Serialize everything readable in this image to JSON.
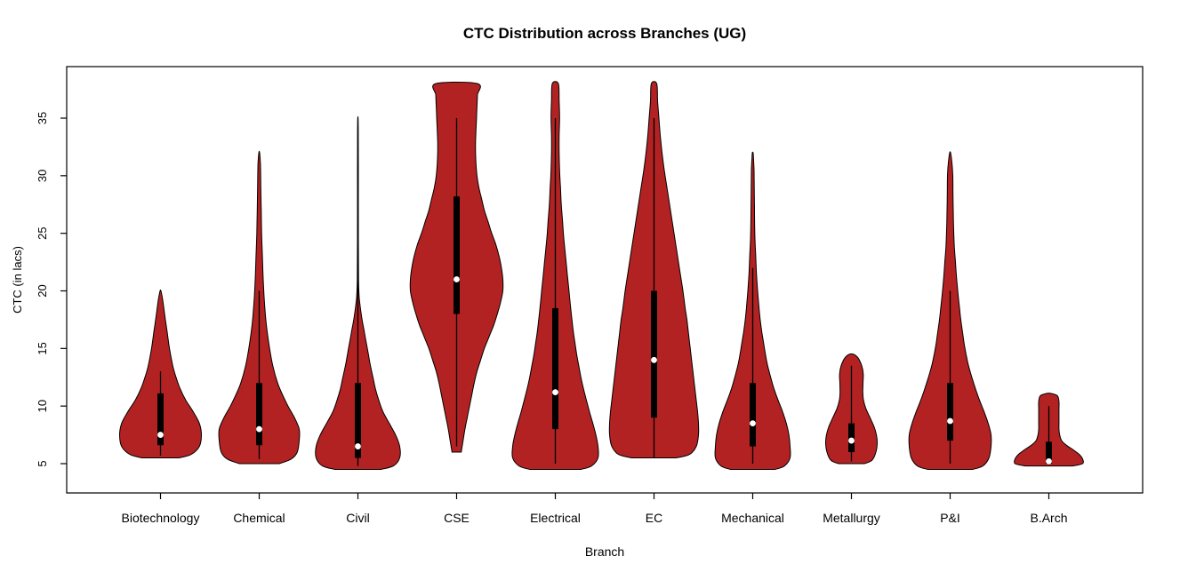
{
  "chart_data": {
    "type": "violin",
    "title": "CTC Distribution across Branches (UG)",
    "xlabel": "Branch",
    "ylabel": "CTC (in lacs)",
    "ylim": [
      2.5,
      39.5
    ],
    "yticks": [
      5,
      10,
      15,
      20,
      25,
      30,
      35
    ],
    "grid": false,
    "legend": "none",
    "fill_color": "#b22222",
    "outline_color": "#000000",
    "box_color": "#000000",
    "median_dot_color": "#ffffff",
    "categories": [
      "Biotechnology",
      "Chemical",
      "Civil",
      "CSE",
      "Electrical",
      "EC",
      "Mechanical",
      "Metallurgy",
      "P&I",
      "B.Arch"
    ],
    "violins": [
      {
        "name": "Biotechnology",
        "min": 5.5,
        "max": 20,
        "q1": 6.6,
        "q3": 11.1,
        "median": 7.5,
        "whisker": [
          5.7,
          13
        ],
        "max_halfwidth": 46,
        "profile": [
          [
            5.5,
            0.45
          ],
          [
            5.8,
            0.75
          ],
          [
            6.5,
            0.95
          ],
          [
            7.5,
            1.0
          ],
          [
            8.5,
            0.95
          ],
          [
            9.5,
            0.8
          ],
          [
            10.5,
            0.62
          ],
          [
            11.5,
            0.48
          ],
          [
            12.5,
            0.38
          ],
          [
            13.5,
            0.3
          ],
          [
            15,
            0.22
          ],
          [
            16.5,
            0.16
          ],
          [
            18,
            0.1
          ],
          [
            19.3,
            0.05
          ],
          [
            20,
            0.01
          ]
        ]
      },
      {
        "name": "Chemical",
        "min": 5,
        "max": 32,
        "q1": 6.6,
        "q3": 12,
        "median": 8,
        "whisker": [
          5.4,
          20
        ],
        "max_halfwidth": 45,
        "profile": [
          [
            5,
            0.5
          ],
          [
            5.4,
            0.8
          ],
          [
            6,
            0.95
          ],
          [
            7,
            1.0
          ],
          [
            8,
            1.0
          ],
          [
            9,
            0.88
          ],
          [
            10,
            0.72
          ],
          [
            11,
            0.58
          ],
          [
            12,
            0.46
          ],
          [
            13.5,
            0.34
          ],
          [
            15,
            0.26
          ],
          [
            17,
            0.18
          ],
          [
            19,
            0.13
          ],
          [
            21,
            0.1
          ],
          [
            23,
            0.08
          ],
          [
            25,
            0.06
          ],
          [
            27,
            0.05
          ],
          [
            29,
            0.04
          ],
          [
            31,
            0.03
          ],
          [
            32,
            0.01
          ]
        ]
      },
      {
        "name": "Civil",
        "min": 4.5,
        "max": 35,
        "q1": 5.5,
        "q3": 12,
        "median": 6.5,
        "whisker": [
          4.8,
          29
        ],
        "max_halfwidth": 47,
        "profile": [
          [
            4.5,
            0.55
          ],
          [
            4.8,
            0.85
          ],
          [
            5.5,
            1.0
          ],
          [
            6.5,
            1.0
          ],
          [
            7.5,
            0.9
          ],
          [
            8.5,
            0.75
          ],
          [
            9.5,
            0.6
          ],
          [
            10.5,
            0.5
          ],
          [
            11.5,
            0.42
          ],
          [
            12.5,
            0.36
          ],
          [
            13.5,
            0.3
          ],
          [
            14.5,
            0.25
          ],
          [
            15.5,
            0.2
          ],
          [
            16.5,
            0.15
          ],
          [
            17.5,
            0.1
          ],
          [
            18.5,
            0.06
          ],
          [
            19.5,
            0.03
          ],
          [
            21,
            0.015
          ],
          [
            25,
            0.01
          ],
          [
            30,
            0.01
          ],
          [
            34,
            0.008
          ],
          [
            35,
            0.004
          ]
        ]
      },
      {
        "name": "CSE",
        "min": 6,
        "max": 38,
        "q1": 18,
        "q3": 28.2,
        "median": 21,
        "whisker": [
          6.5,
          35
        ],
        "max_halfwidth": 52,
        "profile": [
          [
            6,
            0.1
          ],
          [
            7,
            0.14
          ],
          [
            8,
            0.18
          ],
          [
            9,
            0.23
          ],
          [
            10,
            0.28
          ],
          [
            11,
            0.33
          ],
          [
            12,
            0.38
          ],
          [
            13,
            0.44
          ],
          [
            14,
            0.52
          ],
          [
            15,
            0.6
          ],
          [
            16,
            0.7
          ],
          [
            17,
            0.8
          ],
          [
            18,
            0.88
          ],
          [
            19,
            0.95
          ],
          [
            20,
            1.0
          ],
          [
            21,
            1.0
          ],
          [
            22,
            0.97
          ],
          [
            23,
            0.92
          ],
          [
            24,
            0.85
          ],
          [
            25,
            0.76
          ],
          [
            26,
            0.68
          ],
          [
            27,
            0.6
          ],
          [
            28,
            0.54
          ],
          [
            29,
            0.48
          ],
          [
            30,
            0.44
          ],
          [
            31,
            0.42
          ],
          [
            32,
            0.41
          ],
          [
            33,
            0.41
          ],
          [
            34,
            0.42
          ],
          [
            35,
            0.43
          ],
          [
            36,
            0.44
          ],
          [
            37,
            0.45
          ],
          [
            38,
            0.45
          ]
        ]
      },
      {
        "name": "Electrical",
        "min": 4.5,
        "max": 38,
        "q1": 8,
        "q3": 18.5,
        "median": 11.2,
        "whisker": [
          5,
          35
        ],
        "max_halfwidth": 48,
        "profile": [
          [
            4.5,
            0.6
          ],
          [
            4.8,
            0.85
          ],
          [
            5.5,
            1.0
          ],
          [
            6.5,
            1.0
          ],
          [
            7.5,
            0.95
          ],
          [
            8.5,
            0.88
          ],
          [
            9.5,
            0.8
          ],
          [
            10.5,
            0.73
          ],
          [
            11.5,
            0.66
          ],
          [
            12.5,
            0.6
          ],
          [
            13.5,
            0.55
          ],
          [
            14.5,
            0.5
          ],
          [
            15.5,
            0.46
          ],
          [
            16.5,
            0.42
          ],
          [
            17.5,
            0.39
          ],
          [
            18.5,
            0.36
          ],
          [
            20,
            0.32
          ],
          [
            21.5,
            0.28
          ],
          [
            23,
            0.24
          ],
          [
            24.5,
            0.2
          ],
          [
            26,
            0.17
          ],
          [
            27.5,
            0.14
          ],
          [
            29,
            0.12
          ],
          [
            30.5,
            0.1
          ],
          [
            32,
            0.09
          ],
          [
            33.5,
            0.09
          ],
          [
            35,
            0.1
          ],
          [
            36.5,
            0.09
          ],
          [
            38,
            0.07
          ]
        ]
      },
      {
        "name": "EC",
        "min": 5.5,
        "max": 38,
        "q1": 9,
        "q3": 20,
        "median": 14,
        "whisker": [
          5.5,
          35
        ],
        "max_halfwidth": 50,
        "profile": [
          [
            5.5,
            0.5
          ],
          [
            5.8,
            0.8
          ],
          [
            6.5,
            0.95
          ],
          [
            7.5,
            1.0
          ],
          [
            8.5,
            1.0
          ],
          [
            9.5,
            0.98
          ],
          [
            10.5,
            0.95
          ],
          [
            11.5,
            0.92
          ],
          [
            12.5,
            0.89
          ],
          [
            13.5,
            0.86
          ],
          [
            14.5,
            0.83
          ],
          [
            15.5,
            0.8
          ],
          [
            16.5,
            0.77
          ],
          [
            17.5,
            0.74
          ],
          [
            18.5,
            0.7
          ],
          [
            20,
            0.65
          ],
          [
            21.5,
            0.59
          ],
          [
            23,
            0.53
          ],
          [
            24.5,
            0.47
          ],
          [
            26,
            0.41
          ],
          [
            27.5,
            0.35
          ],
          [
            29,
            0.29
          ],
          [
            30.5,
            0.23
          ],
          [
            32,
            0.18
          ],
          [
            33.5,
            0.14
          ],
          [
            35,
            0.11
          ],
          [
            36.5,
            0.08
          ],
          [
            38,
            0.06
          ]
        ]
      },
      {
        "name": "Mechanical",
        "min": 4.5,
        "max": 32,
        "q1": 6.5,
        "q3": 12,
        "median": 8.5,
        "whisker": [
          5,
          22
        ],
        "max_halfwidth": 42,
        "profile": [
          [
            4.5,
            0.6
          ],
          [
            4.8,
            0.85
          ],
          [
            5.5,
            1.0
          ],
          [
            6.5,
            1.0
          ],
          [
            7.5,
            0.97
          ],
          [
            8.5,
            0.9
          ],
          [
            9.5,
            0.8
          ],
          [
            10.5,
            0.68
          ],
          [
            11.5,
            0.57
          ],
          [
            12.5,
            0.48
          ],
          [
            13.5,
            0.4
          ],
          [
            14.5,
            0.34
          ],
          [
            15.5,
            0.29
          ],
          [
            16.5,
            0.24
          ],
          [
            17.5,
            0.2
          ],
          [
            18.5,
            0.17
          ],
          [
            20,
            0.13
          ],
          [
            21.5,
            0.1
          ],
          [
            23,
            0.08
          ],
          [
            24.5,
            0.06
          ],
          [
            26,
            0.05
          ],
          [
            27.5,
            0.045
          ],
          [
            29,
            0.04
          ],
          [
            30.5,
            0.035
          ],
          [
            31.6,
            0.02
          ],
          [
            32,
            0.01
          ]
        ]
      },
      {
        "name": "Metallurgy",
        "min": 5,
        "max": 14.5,
        "q1": 6,
        "q3": 8.5,
        "median": 7,
        "whisker": [
          5.2,
          13.5
        ],
        "max_halfwidth": 29,
        "profile": [
          [
            5,
            0.5
          ],
          [
            5.3,
            0.8
          ],
          [
            6,
            0.95
          ],
          [
            6.8,
            1.0
          ],
          [
            7.5,
            0.97
          ],
          [
            8.2,
            0.88
          ],
          [
            9,
            0.72
          ],
          [
            9.8,
            0.56
          ],
          [
            10.5,
            0.47
          ],
          [
            11.2,
            0.44
          ],
          [
            12,
            0.45
          ],
          [
            12.8,
            0.46
          ],
          [
            13.5,
            0.4
          ],
          [
            14.2,
            0.25
          ],
          [
            14.5,
            0.08
          ]
        ]
      },
      {
        "name": "P&I",
        "min": 4.5,
        "max": 32,
        "q1": 7,
        "q3": 12,
        "median": 8.7,
        "whisker": [
          5,
          20
        ],
        "max_halfwidth": 46,
        "profile": [
          [
            4.5,
            0.55
          ],
          [
            4.8,
            0.8
          ],
          [
            5.5,
            0.95
          ],
          [
            6.5,
            1.0
          ],
          [
            7.5,
            1.0
          ],
          [
            8.5,
            0.93
          ],
          [
            9.5,
            0.83
          ],
          [
            10.5,
            0.72
          ],
          [
            11.5,
            0.62
          ],
          [
            12.5,
            0.53
          ],
          [
            13.5,
            0.45
          ],
          [
            14.5,
            0.39
          ],
          [
            15.5,
            0.34
          ],
          [
            16.5,
            0.3
          ],
          [
            17.5,
            0.26
          ],
          [
            18.5,
            0.23
          ],
          [
            19.5,
            0.2
          ],
          [
            21,
            0.16
          ],
          [
            22.5,
            0.13
          ],
          [
            24,
            0.1
          ],
          [
            25.5,
            0.085
          ],
          [
            27,
            0.075
          ],
          [
            28.5,
            0.07
          ],
          [
            30,
            0.065
          ],
          [
            31.3,
            0.04
          ],
          [
            32,
            0.01
          ]
        ]
      },
      {
        "name": "B.Arch",
        "min": 4.8,
        "max": 11.1,
        "q1": 5,
        "q3": 6.9,
        "median": 5.2,
        "whisker": [
          4.9,
          10
        ],
        "max_halfwidth": 38,
        "profile": [
          [
            4.8,
            0.7
          ],
          [
            5.0,
            1.0
          ],
          [
            5.4,
            1.0
          ],
          [
            5.8,
            0.9
          ],
          [
            6.2,
            0.72
          ],
          [
            6.6,
            0.52
          ],
          [
            7.0,
            0.38
          ],
          [
            7.5,
            0.32
          ],
          [
            8.0,
            0.3
          ],
          [
            8.6,
            0.3
          ],
          [
            9.2,
            0.3
          ],
          [
            9.8,
            0.3
          ],
          [
            10.4,
            0.3
          ],
          [
            10.9,
            0.25
          ],
          [
            11.1,
            0.06
          ]
        ]
      }
    ]
  }
}
